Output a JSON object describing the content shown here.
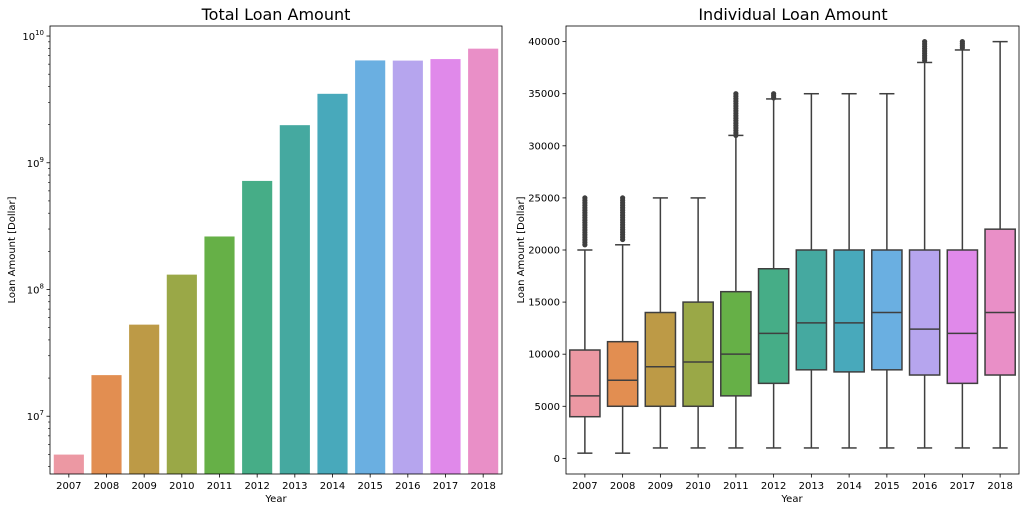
{
  "chart_data": [
    {
      "type": "bar",
      "title": "Total Loan Amount",
      "xlabel": "Year",
      "ylabel": "Loan Amount [Dollar]",
      "yscale": "log",
      "ylim": [
        3500000,
        12000000000
      ],
      "yticks": [
        {
          "value": 10000000,
          "base": "10",
          "exp": "7"
        },
        {
          "value": 100000000,
          "base": "10",
          "exp": "8"
        },
        {
          "value": 1000000000,
          "base": "10",
          "exp": "9"
        },
        {
          "value": 10000000000,
          "base": "10",
          "exp": "10"
        }
      ],
      "categories": [
        "2007",
        "2008",
        "2009",
        "2010",
        "2011",
        "2012",
        "2013",
        "2014",
        "2015",
        "2016",
        "2017",
        "2018"
      ],
      "values": [
        4980000,
        21100000,
        52800000,
        131000000,
        262000000,
        719000000,
        1980000000,
        3500000000,
        6420000000,
        6400000000,
        6580000000,
        7950000000
      ],
      "colors": [
        "#ec98a3",
        "#e28e51",
        "#bd9a46",
        "#9aa847",
        "#66b047",
        "#46ad87",
        "#45a9a0",
        "#48a9bb",
        "#6aafe1",
        "#b6a5ee",
        "#e089ea",
        "#e98fc7"
      ],
      "grid": false,
      "legend": "none"
    },
    {
      "type": "box",
      "title": "Individual Loan Amount",
      "xlabel": "Year",
      "ylabel": "Loan Amount [Dollar]",
      "ylim": [
        -1500,
        41500
      ],
      "yticks": [
        "0",
        "5000",
        "10000",
        "15000",
        "20000",
        "25000",
        "30000",
        "35000",
        "40000"
      ],
      "categories": [
        "2007",
        "2008",
        "2009",
        "2010",
        "2011",
        "2012",
        "2013",
        "2014",
        "2015",
        "2016",
        "2017",
        "2018"
      ],
      "boxes": [
        {
          "min": 500,
          "q1": 4000,
          "median": 6000,
          "q3": 10400,
          "max": 20000,
          "outliers_from": 20500,
          "outliers_to": 25000
        },
        {
          "min": 500,
          "q1": 5000,
          "median": 7500,
          "q3": 11200,
          "max": 20500,
          "outliers_from": 21000,
          "outliers_to": 25000
        },
        {
          "min": 1000,
          "q1": 5000,
          "median": 8800,
          "q3": 14000,
          "max": 25000
        },
        {
          "min": 1000,
          "q1": 5000,
          "median": 9250,
          "q3": 15000,
          "max": 25000
        },
        {
          "min": 1000,
          "q1": 6000,
          "median": 10000,
          "q3": 16000,
          "max": 31000,
          "outliers_from": 31000,
          "outliers_to": 35000
        },
        {
          "min": 1000,
          "q1": 7200,
          "median": 12000,
          "q3": 18200,
          "max": 34500,
          "outliers_from": 34600,
          "outliers_to": 35000
        },
        {
          "min": 1000,
          "q1": 8500,
          "median": 13000,
          "q3": 20000,
          "max": 35000
        },
        {
          "min": 1000,
          "q1": 8300,
          "median": 13000,
          "q3": 20000,
          "max": 35000
        },
        {
          "min": 1000,
          "q1": 8500,
          "median": 14000,
          "q3": 20000,
          "max": 35000
        },
        {
          "min": 1000,
          "q1": 8000,
          "median": 12400,
          "q3": 20000,
          "max": 38000,
          "outliers_from": 38200,
          "outliers_to": 40000
        },
        {
          "min": 1000,
          "q1": 7200,
          "median": 12000,
          "q3": 20000,
          "max": 39200,
          "outliers_from": 39400,
          "outliers_to": 40000
        },
        {
          "min": 1000,
          "q1": 8000,
          "median": 14000,
          "q3": 22000,
          "max": 40000
        }
      ],
      "colors": [
        "#ec98a3",
        "#e28e51",
        "#bd9a46",
        "#9aa847",
        "#66b047",
        "#46ad87",
        "#45a9a0",
        "#48a9bb",
        "#6aafe1",
        "#b6a5ee",
        "#e089ea",
        "#e98fc7"
      ],
      "grid": false,
      "legend": "none"
    }
  ]
}
